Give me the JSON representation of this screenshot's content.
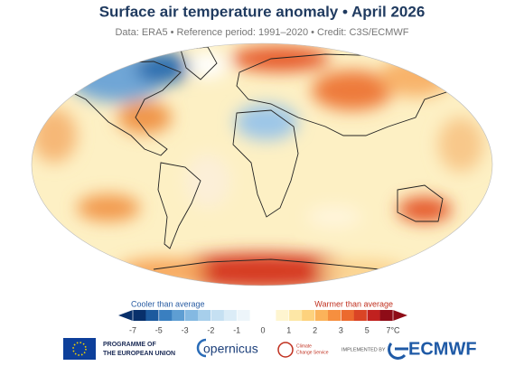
{
  "header": {
    "title": "Surface air temperature anomaly • April 2026",
    "subtitle": "Data: ERA5 • Reference period: 1991–2020 • Credit: C3S/ECMWF"
  },
  "legend": {
    "cooler": "Cooler than average",
    "warmer": "Warmer than average",
    "ticks": [
      -7,
      -5,
      -3,
      -2,
      -1,
      0,
      1,
      2,
      3,
      5,
      {
        "value": 7,
        "label": "7°C"
      }
    ],
    "colors": [
      "#08306b",
      "#1c5a9e",
      "#3a7fc0",
      "#5e9ed3",
      "#84b9e2",
      "#a7cfeb",
      "#c5e0f2",
      "#dbecf7",
      "#edf5fa",
      "#ffffff",
      "#ffffff",
      "#fef5d0",
      "#fde7a6",
      "#fdd27d",
      "#fbb35a",
      "#f68f3f",
      "#ec6a2e",
      "#da4425",
      "#c1211f",
      "#8e0c17"
    ]
  },
  "footer": {
    "eu": [
      "PROGRAMME OF",
      "THE EUROPEAN UNION"
    ],
    "copernicus": "opernicus",
    "c3s": [
      "Climate",
      "Change Service"
    ],
    "implemented": "IMPLEMENTED BY",
    "ecmwf": "ECMWF"
  }
}
